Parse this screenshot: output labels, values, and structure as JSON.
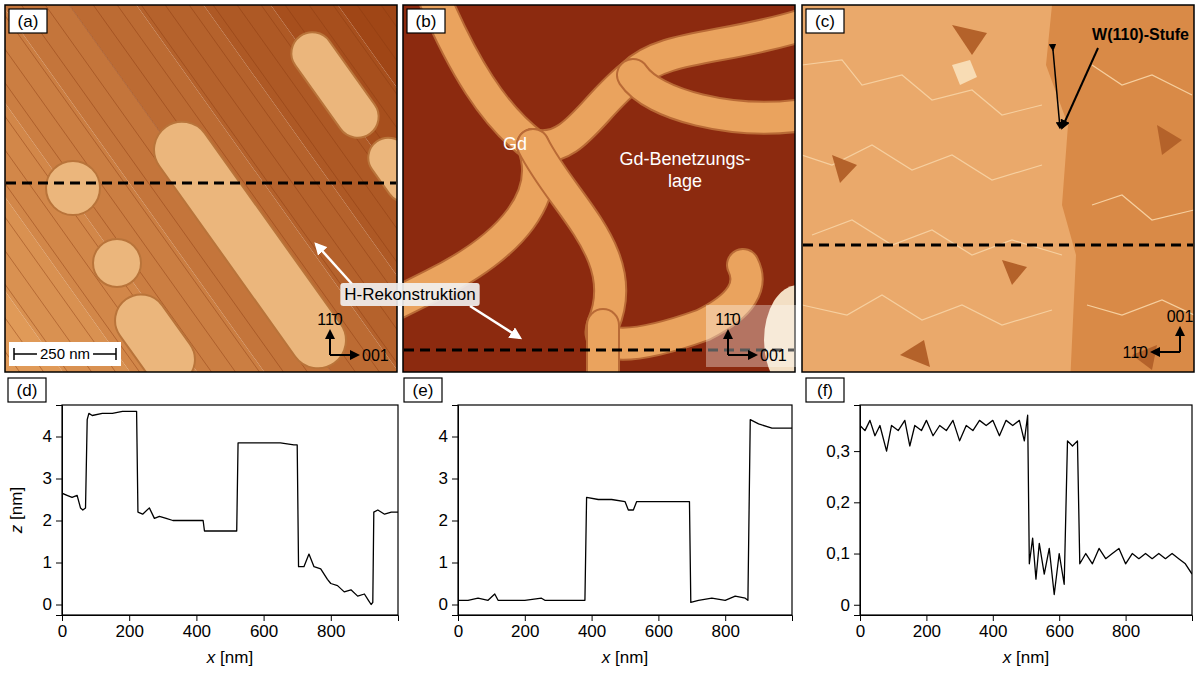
{
  "images": [
    {
      "label": "(a)",
      "direction_up": "11̄0",
      "direction_side": "001",
      "scale_bar": "250 nm"
    },
    {
      "label": "(b)",
      "direction_up": "11̄0",
      "direction_side": "001",
      "region_label": "Gd",
      "wetting_layer_label": [
        "Gd-Benetzungs-",
        "lage"
      ]
    },
    {
      "label": "(c)",
      "direction_up": "001",
      "direction_side": "11̄0",
      "step_label": "W(110)-Stufe"
    }
  ],
  "annotation": "H-Rekonstruktion",
  "chart_data": [
    {
      "type": "line",
      "title": "(d)",
      "x_label": "x [nm]",
      "y_label": "z [nm]",
      "color": "#000000",
      "xlim": [
        0,
        1000
      ],
      "ylim": [
        -0.25,
        4.75
      ],
      "xticks": [
        0,
        200,
        400,
        600,
        800
      ],
      "yticks": [
        0,
        1,
        2,
        3,
        4
      ],
      "x": [
        0,
        15,
        30,
        45,
        55,
        62,
        70,
        75,
        80,
        90,
        120,
        150,
        180,
        200,
        215,
        222,
        226,
        240,
        260,
        275,
        290,
        310,
        330,
        360,
        390,
        420,
        424,
        460,
        500,
        520,
        524,
        560,
        600,
        650,
        690,
        700,
        704,
        720,
        735,
        750,
        770,
        790,
        800,
        820,
        840,
        860,
        880,
        900,
        912,
        920,
        925,
        928,
        940,
        960,
        980,
        1000
      ],
      "values": [
        2.65,
        2.6,
        2.55,
        2.6,
        2.3,
        2.25,
        2.3,
        4.4,
        4.55,
        4.5,
        4.55,
        4.55,
        4.6,
        4.6,
        4.6,
        4.6,
        2.2,
        2.15,
        2.3,
        2.05,
        2.1,
        2.05,
        2.0,
        2.0,
        2.0,
        2.0,
        1.75,
        1.75,
        1.75,
        1.75,
        3.85,
        3.85,
        3.85,
        3.85,
        3.8,
        3.8,
        0.9,
        0.9,
        1.2,
        0.9,
        0.85,
        0.6,
        0.5,
        0.45,
        0.3,
        0.35,
        0.2,
        0.25,
        0.1,
        0.0,
        0.05,
        2.2,
        2.25,
        2.15,
        2.2,
        2.2
      ]
    },
    {
      "type": "line",
      "title": "(e)",
      "x_label": "x [nm]",
      "color": "#000000",
      "xlim": [
        0,
        1000
      ],
      "ylim": [
        -0.25,
        4.75
      ],
      "xticks": [
        0,
        200,
        400,
        600,
        800
      ],
      "yticks": [
        0,
        1,
        2,
        3,
        4
      ],
      "x": [
        0,
        30,
        60,
        90,
        110,
        120,
        160,
        200,
        250,
        260,
        300,
        340,
        380,
        385,
        420,
        460,
        500,
        510,
        525,
        535,
        580,
        620,
        660,
        693,
        697,
        720,
        760,
        800,
        830,
        860,
        868,
        875,
        900,
        940,
        1000
      ],
      "values": [
        0.1,
        0.1,
        0.15,
        0.1,
        0.25,
        0.1,
        0.1,
        0.1,
        0.15,
        0.1,
        0.1,
        0.1,
        0.1,
        2.55,
        2.5,
        2.5,
        2.45,
        2.25,
        2.25,
        2.45,
        2.45,
        2.45,
        2.45,
        2.45,
        0.05,
        0.1,
        0.15,
        0.1,
        0.2,
        0.15,
        0.1,
        4.4,
        4.3,
        4.2,
        4.2
      ]
    },
    {
      "type": "line",
      "title": "(f)",
      "x_label": "x [nm]",
      "color": "#000000",
      "xlim": [
        0,
        1000
      ],
      "ylim": [
        -0.02,
        0.39
      ],
      "xticks": [
        0,
        200,
        400,
        600,
        800
      ],
      "yticks": [
        0,
        {
          "value": 0.1,
          "label": "0,1"
        },
        {
          "value": 0.2,
          "label": "0,2"
        },
        {
          "value": 0.3,
          "label": "0,3"
        }
      ],
      "x": [
        0,
        15,
        30,
        45,
        60,
        80,
        95,
        115,
        135,
        150,
        165,
        185,
        200,
        220,
        240,
        260,
        280,
        300,
        320,
        340,
        360,
        380,
        400,
        420,
        440,
        460,
        480,
        495,
        505,
        510,
        520,
        530,
        540,
        555,
        570,
        585,
        600,
        615,
        625,
        640,
        655,
        662,
        680,
        700,
        720,
        740,
        760,
        780,
        800,
        820,
        840,
        860,
        880,
        900,
        920,
        940,
        960,
        980,
        1000
      ],
      "values": [
        0.35,
        0.34,
        0.36,
        0.33,
        0.35,
        0.3,
        0.35,
        0.34,
        0.36,
        0.31,
        0.35,
        0.34,
        0.36,
        0.33,
        0.35,
        0.34,
        0.36,
        0.32,
        0.35,
        0.34,
        0.36,
        0.35,
        0.36,
        0.33,
        0.36,
        0.35,
        0.36,
        0.32,
        0.37,
        0.08,
        0.13,
        0.05,
        0.12,
        0.06,
        0.11,
        0.02,
        0.1,
        0.04,
        0.32,
        0.31,
        0.32,
        0.08,
        0.1,
        0.08,
        0.11,
        0.09,
        0.1,
        0.11,
        0.08,
        0.1,
        0.09,
        0.1,
        0.09,
        0.1,
        0.09,
        0.1,
        0.09,
        0.08,
        0.06
      ]
    }
  ]
}
